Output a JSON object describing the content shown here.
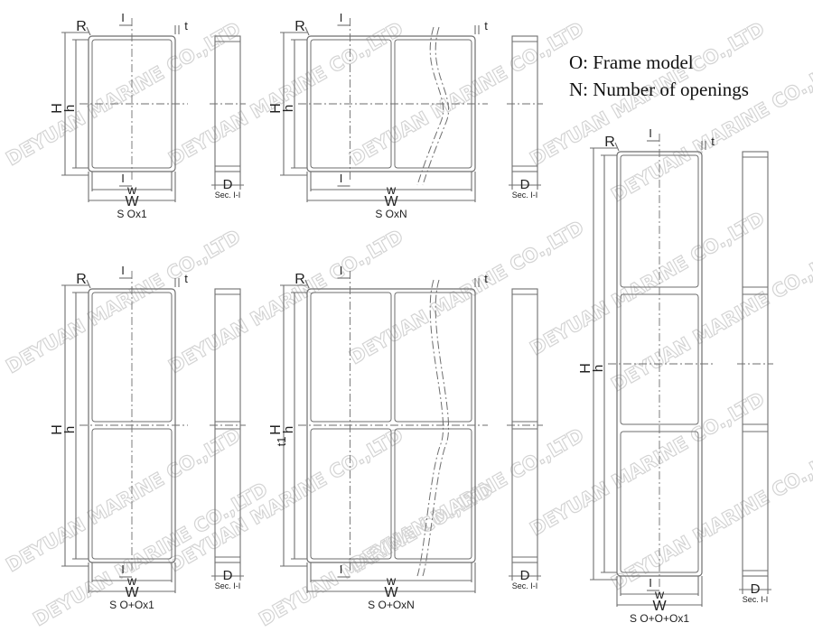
{
  "legend": {
    "line1": "O: Frame model",
    "line2": "N: Number of openings"
  },
  "watermark": "DEYUAN MARINE CO.,LTD",
  "labels": {
    "H": "H",
    "h": "h",
    "W": "W",
    "w": "w",
    "R": "R",
    "t": "t",
    "t1": "t1",
    "I": "I",
    "D": "D",
    "section": "Sec. I-I"
  },
  "drawings": [
    {
      "caption": "S Ox1"
    },
    {
      "caption": "S OxN"
    },
    {
      "caption": "S O+Ox1"
    },
    {
      "caption": "S O+OxN"
    },
    {
      "caption": "S O+O+Ox1"
    }
  ],
  "colors": {
    "line": "#6e6e6e",
    "watermark": "#d4d4d4"
  }
}
